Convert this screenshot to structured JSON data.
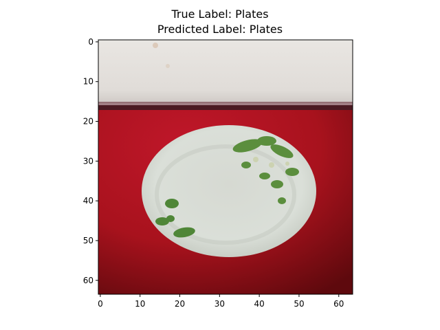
{
  "figure": {
    "title_line1": "True Label: Plates",
    "title_line2": "Predicted Label: Plates"
  },
  "image": {
    "description_icon": "plate-photo",
    "colors": {
      "wall": "#e3dfdb",
      "wall_shadow": "#4a2a2e",
      "table_red": "#b3141f",
      "table_dark": "#6a0a0f",
      "plate": "#d9ddd6",
      "plate_rim": "#c9cec6",
      "leaf_green": "#5a8a3e",
      "leaf_light": "#c8d3a8"
    }
  },
  "axes": {
    "xticks": [
      "0",
      "10",
      "20",
      "30",
      "40",
      "50",
      "60"
    ],
    "yticks": [
      "0",
      "10",
      "20",
      "30",
      "40",
      "50",
      "60"
    ]
  }
}
